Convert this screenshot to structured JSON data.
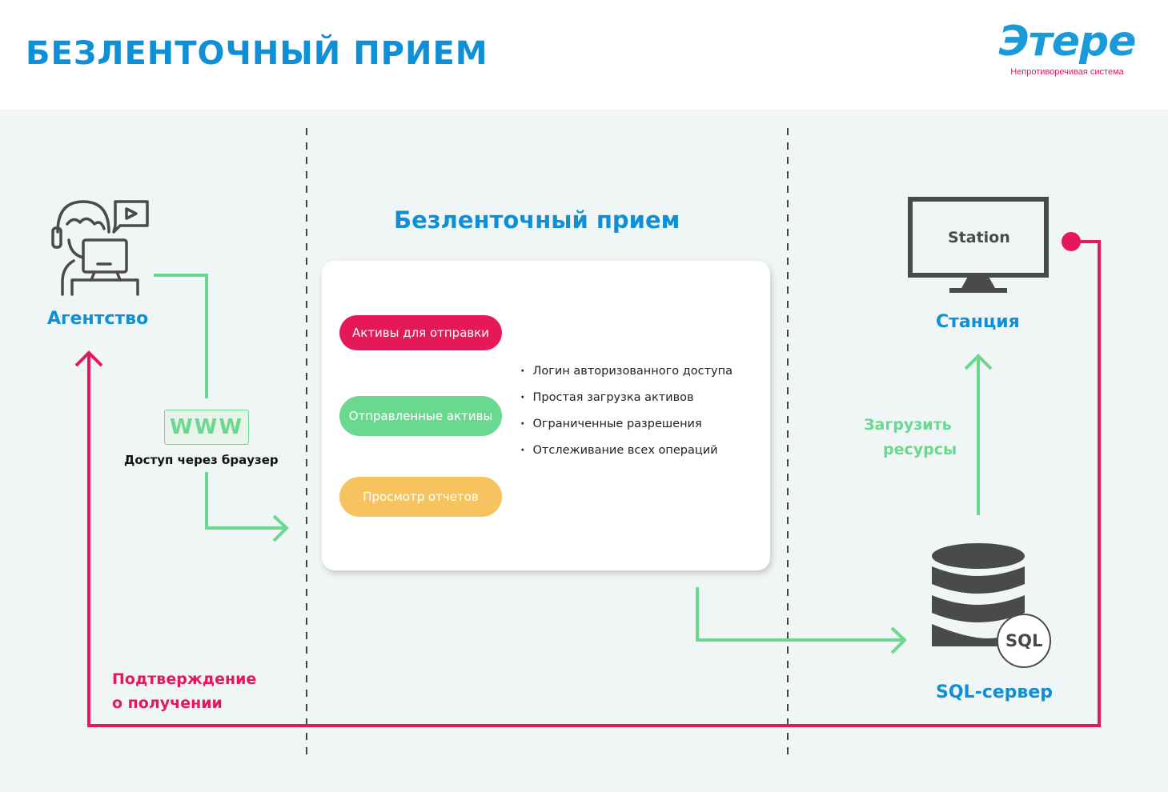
{
  "header": {
    "title": "БЕЗЛЕНТОЧНЫЙ ПРИЕМ"
  },
  "logo": {
    "mark": "Этере",
    "tagline": "Непротиворечивая система"
  },
  "colors": {
    "blue": "#0e8fd6",
    "green": "#6ad88e",
    "red": "#e5195a",
    "yellow": "#f7c35f",
    "icon": "#4a4a4a"
  },
  "agency": {
    "label": "Агентство",
    "icon": "headset-agent-icon"
  },
  "browser": {
    "badge": "WWW",
    "caption": "Доступ через браузер"
  },
  "confirm": {
    "line1": "Подтверждение",
    "line2": "о получении"
  },
  "center": {
    "title": "Безленточный прием",
    "pills": [
      "Активы для отправки",
      "Отправленные активы",
      "Просмотр отчетов"
    ],
    "bullets": [
      "Логин авторизованного доступа",
      "Простая загрузка активов",
      "Ограниченные разрешения",
      "Отслеживание всех операций"
    ]
  },
  "station": {
    "screen_text": "Station",
    "label": "Станция",
    "icon": "monitor-icon"
  },
  "upload": {
    "line1": "Загрузить",
    "line2": "ресурсы"
  },
  "sql": {
    "badge": "SQL",
    "label": "SQL-сервер",
    "icon": "database-icon"
  }
}
